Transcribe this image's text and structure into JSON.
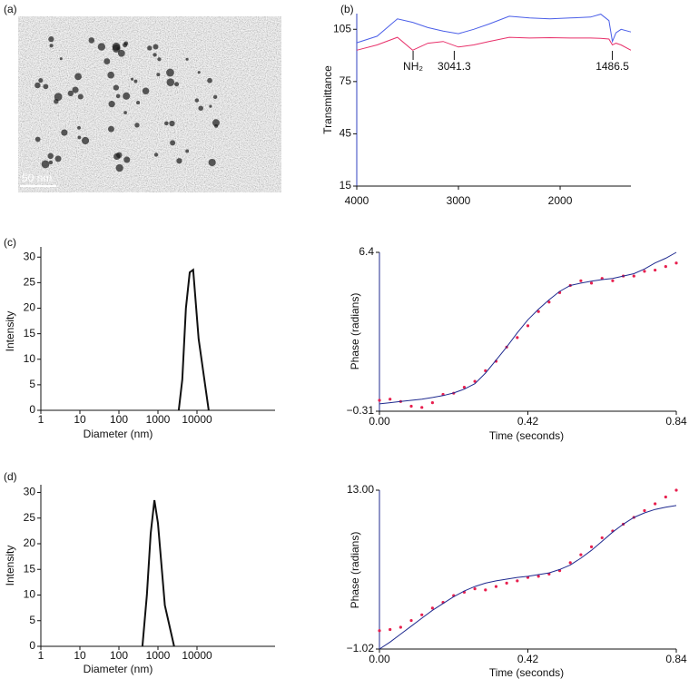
{
  "image_panel": {
    "label": "(a)",
    "scale_bar": "50 nm"
  },
  "chart_data": [
    {
      "type": "line",
      "label": "(b)",
      "ylabel": "Transmittance",
      "x": [
        4000,
        3800,
        3600,
        3450,
        3300,
        3150,
        3000,
        2850,
        2700,
        2500,
        2300,
        2100,
        1900,
        1700,
        1600,
        1520,
        1486.5,
        1450,
        1400,
        1304
      ],
      "series": [
        {
          "color": "#4a5ee8",
          "style": "line",
          "values": [
            97.3,
            101,
            111,
            109,
            106,
            104,
            102.5,
            105,
            108,
            112.5,
            111.5,
            111,
            111.5,
            112,
            113.7,
            110,
            98,
            103,
            105,
            103.5
          ]
        },
        {
          "color": "#e8306a",
          "style": "line",
          "values": [
            93,
            96,
            100.4,
            93,
            97,
            98,
            94.8,
            96,
            98,
            100.4,
            100,
            100.2,
            100,
            100,
            99.8,
            99.4,
            96,
            97,
            96,
            93
          ]
        }
      ],
      "annotations": [
        {
          "text": "NH₂",
          "x": 3446
        },
        {
          "text": "3041.3",
          "x": 3041.3
        },
        {
          "text": "1486.5",
          "x": 1486.5
        }
      ],
      "xlim": [
        4000,
        1304
      ],
      "xticks": [
        4000,
        3000,
        2000
      ],
      "ylim": [
        15,
        114
      ],
      "yticks": [
        15,
        45,
        75,
        105
      ]
    },
    {
      "type": "line",
      "label": "(c)",
      "xlabel": "Diameter (nm)",
      "ylabel": "Intensity",
      "log_x": true,
      "x": [
        3400,
        4200,
        5200,
        6500,
        8000,
        11000,
        20000
      ],
      "series": [
        {
          "color": "#111111",
          "style": "line",
          "values": [
            0,
            6,
            20,
            27,
            27.5,
            14,
            0
          ]
        }
      ],
      "xlim": [
        1,
        1000000
      ],
      "xticks": [
        1,
        10,
        100,
        1000,
        10000
      ],
      "ylim": [
        0,
        32
      ],
      "yticks": [
        0,
        5,
        10,
        15,
        20,
        25,
        30
      ]
    },
    {
      "type": "line",
      "xlabel": "Time (seconds)",
      "ylabel": "Phase (radians)",
      "x": [
        0,
        0.03,
        0.06,
        0.09,
        0.12,
        0.15,
        0.18,
        0.21,
        0.24,
        0.27,
        0.3,
        0.33,
        0.36,
        0.39,
        0.42,
        0.45,
        0.48,
        0.51,
        0.54,
        0.57,
        0.6,
        0.63,
        0.66,
        0.69,
        0.72,
        0.75,
        0.78,
        0.81,
        0.84
      ],
      "series": [
        {
          "color": "#e8204f",
          "style": "dots",
          "values": [
            0.15,
            0.2,
            0.1,
            -0.1,
            -0.15,
            0.05,
            0.4,
            0.45,
            0.7,
            0.95,
            1.4,
            1.8,
            2.4,
            2.8,
            3.3,
            3.9,
            4.3,
            4.7,
            5.0,
            5.2,
            5.1,
            5.3,
            5.2,
            5.4,
            5.4,
            5.6,
            5.65,
            5.8,
            5.95
          ]
        },
        {
          "color": "#1f2a8f",
          "style": "line",
          "values": [
            0,
            0.05,
            0.1,
            0.15,
            0.2,
            0.27,
            0.35,
            0.46,
            0.62,
            0.85,
            1.3,
            1.85,
            2.4,
            3.0,
            3.55,
            4.0,
            4.4,
            4.75,
            5.0,
            5.1,
            5.18,
            5.25,
            5.3,
            5.4,
            5.5,
            5.7,
            5.95,
            6.15,
            6.4
          ]
        }
      ],
      "xlim": [
        0,
        0.84
      ],
      "xticks": [
        {
          "value": 0,
          "label": "0.00"
        },
        0.42,
        0.84
      ],
      "ylim": [
        -0.31,
        6.4
      ],
      "yticks": [
        {
          "value": -0.31,
          "label": "−0.31"
        },
        6.4
      ]
    },
    {
      "type": "line",
      "label": "(d)",
      "xlabel": "Diameter (nm)",
      "ylabel": "Intensity",
      "log_x": true,
      "x": [
        400,
        520,
        650,
        810,
        1000,
        1500,
        2600
      ],
      "series": [
        {
          "color": "#111111",
          "style": "line",
          "values": [
            0,
            10,
            22,
            28.5,
            24,
            8,
            0
          ]
        }
      ],
      "xlim": [
        1,
        1000000
      ],
      "xticks": [
        1,
        10,
        100,
        1000,
        10000
      ],
      "ylim": [
        0,
        31.5
      ],
      "yticks": [
        0,
        5,
        10,
        15,
        20,
        25,
        30
      ]
    },
    {
      "type": "line",
      "xlabel": "Time (seconds)",
      "ylabel": "Phase (radians)",
      "x": [
        0,
        0.03,
        0.06,
        0.09,
        0.12,
        0.15,
        0.18,
        0.21,
        0.24,
        0.27,
        0.3,
        0.33,
        0.36,
        0.39,
        0.42,
        0.45,
        0.48,
        0.51,
        0.54,
        0.57,
        0.6,
        0.63,
        0.66,
        0.69,
        0.72,
        0.75,
        0.78,
        0.81,
        0.84
      ],
      "series": [
        {
          "color": "#e8204f",
          "style": "dots",
          "values": [
            0.6,
            0.7,
            0.9,
            1.5,
            2.0,
            2.6,
            3.1,
            3.7,
            4.0,
            4.3,
            4.2,
            4.5,
            4.8,
            5.0,
            5.3,
            5.4,
            5.6,
            5.9,
            6.6,
            7.3,
            8.0,
            8.8,
            9.4,
            10.0,
            10.6,
            11.2,
            11.8,
            12.4,
            13.0
          ]
        },
        {
          "color": "#1f2a8f",
          "style": "line",
          "values": [
            -1.02,
            -0.4,
            0.3,
            1.0,
            1.7,
            2.4,
            3.0,
            3.6,
            4.1,
            4.5,
            4.8,
            5.0,
            5.15,
            5.3,
            5.4,
            5.55,
            5.7,
            6.0,
            6.4,
            7.0,
            7.7,
            8.5,
            9.3,
            10.0,
            10.6,
            11.0,
            11.3,
            11.5,
            11.65
          ]
        }
      ],
      "xlim": [
        0,
        0.84
      ],
      "xticks": [
        {
          "value": 0,
          "label": "0.00"
        },
        0.42,
        0.84
      ],
      "ylim": [
        -1.02,
        13.0
      ],
      "yticks": [
        {
          "value": -1.02,
          "label": "−1.02"
        },
        {
          "value": 13,
          "label": "13.00"
        }
      ]
    }
  ]
}
